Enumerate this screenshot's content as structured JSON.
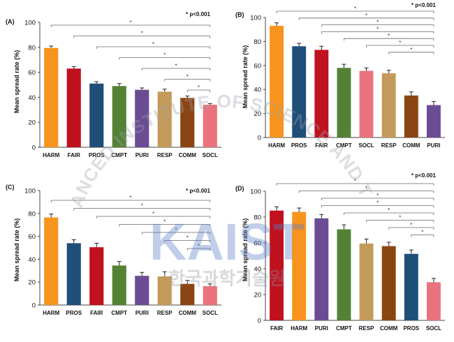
{
  "figure": {
    "watermark": {
      "text_top": "KOREA ADVANCED INSTITUTE OF SCIENCE AND TECHNOLOGY",
      "logo": "KAIST",
      "text_korean": "한국과학기술원"
    }
  },
  "colors": {
    "HARM": "#F7941D",
    "FAIR": "#C0111F",
    "PROS": "#1F4E79",
    "CMPT": "#548235",
    "PURI": "#6A4C93",
    "RESP": "#C49A5B",
    "COMM": "#8B4513",
    "SOCL": "#E8737D",
    "error_bar": "#222222",
    "axis": "#444444",
    "bracket": "#666666"
  },
  "chart_data": [
    {
      "type": "bar",
      "panel": "(A)",
      "significance": "* p<0.001",
      "ylabel": "Mean spread rate (%)",
      "ylim": [
        0,
        100
      ],
      "yticks": [
        0,
        20,
        40,
        60,
        80,
        100
      ],
      "categories": [
        "HARM",
        "FAIR",
        "PROS",
        "CMPT",
        "PURI",
        "RESP",
        "COMM",
        "SOCL"
      ],
      "values": [
        79.5,
        63,
        51,
        49,
        46,
        44.5,
        39.5,
        34
      ],
      "errors": [
        1.5,
        1.5,
        1.5,
        2,
        1.5,
        2,
        1.5,
        1
      ],
      "brackets": [
        {
          "from": "HARM",
          "to": "SOCL",
          "label": "*"
        },
        {
          "from": "FAIR",
          "to": "SOCL",
          "label": "*"
        },
        {
          "from": "PROS",
          "to": "SOCL",
          "label": "*"
        },
        {
          "from": "CMPT",
          "to": "SOCL",
          "label": "*"
        },
        {
          "from": "PURI",
          "to": "SOCL",
          "label": "*"
        },
        {
          "from": "RESP",
          "to": "SOCL",
          "label": "*"
        },
        {
          "from": "COMM",
          "to": "SOCL",
          "label": "*"
        }
      ]
    },
    {
      "type": "bar",
      "panel": "(B)",
      "significance": "* p<0.001",
      "ylabel": "Mean spread rate (%)",
      "ylim": [
        0,
        100
      ],
      "yticks": [
        0,
        20,
        40,
        60,
        80,
        100
      ],
      "categories": [
        "HARM",
        "PROS",
        "FAIR",
        "CMPT",
        "SOCL",
        "RESP",
        "COMM",
        "PURI"
      ],
      "values": [
        93,
        76,
        73,
        58,
        55.5,
        53.5,
        35,
        27
      ],
      "errors": [
        2.5,
        2.5,
        3,
        3,
        2.5,
        2.5,
        3,
        3
      ],
      "brackets": [
        {
          "from": "HARM",
          "to": "PURI",
          "label": "*"
        },
        {
          "from": "PROS",
          "to": "PURI",
          "label": "*"
        },
        {
          "from": "FAIR",
          "to": "PURI",
          "label": "*"
        },
        {
          "from": "FAIR",
          "to": "PURI",
          "label": "*"
        },
        {
          "from": "CMPT",
          "to": "PURI",
          "label": "*"
        },
        {
          "from": "SOCL",
          "to": "PURI",
          "label": "*"
        },
        {
          "from": "RESP",
          "to": "PURI",
          "label": "*"
        }
      ]
    },
    {
      "type": "bar",
      "panel": "(C)",
      "significance": "* p<0.001",
      "ylabel": "Mean spread rate (%)",
      "ylim": [
        0,
        100
      ],
      "yticks": [
        0,
        20,
        40,
        60,
        80,
        100
      ],
      "categories": [
        "HARM",
        "PROS",
        "FAIR",
        "CMPT",
        "PURI",
        "RESP",
        "COMM",
        "SOCL"
      ],
      "values": [
        76.5,
        54,
        50.5,
        34.5,
        25.5,
        25,
        18.5,
        16.5
      ],
      "errors": [
        3,
        3,
        3.5,
        3.5,
        3,
        4,
        3,
        2
      ],
      "brackets": [
        {
          "from": "HARM",
          "to": "SOCL",
          "label": "*"
        },
        {
          "from": "PROS",
          "to": "SOCL",
          "label": "*"
        },
        {
          "from": "FAIR",
          "to": "SOCL",
          "label": "*"
        },
        {
          "from": "CMPT",
          "to": "SOCL",
          "label": "*"
        },
        {
          "from": "PURI",
          "to": "SOCL",
          "label": "*"
        },
        {
          "from": "RESP",
          "to": "SOCL",
          "label": "*"
        },
        {
          "from": "COMM",
          "to": "SOCL",
          "label": "*"
        }
      ]
    },
    {
      "type": "bar",
      "panel": "(D)",
      "significance": "* p<0.001",
      "ylabel": "Mean spread rate (%)",
      "ylim": [
        0,
        100
      ],
      "yticks": [
        0,
        20,
        40,
        60,
        80,
        100
      ],
      "categories": [
        "FAIR",
        "HARM",
        "PURI",
        "CMPT",
        "RESP",
        "COMM",
        "PROS",
        "SOCL"
      ],
      "values": [
        85,
        84,
        79,
        70.5,
        59.5,
        57.5,
        51.5,
        29.5
      ],
      "errors": [
        3,
        3,
        3,
        3.5,
        3.5,
        3,
        3,
        3
      ],
      "brackets": [
        {
          "from": "FAIR",
          "to": "SOCL",
          "label": "*"
        },
        {
          "from": "HARM",
          "to": "SOCL",
          "label": "*"
        },
        {
          "from": "PURI",
          "to": "SOCL",
          "label": "*"
        },
        {
          "from": "PURI",
          "to": "SOCL",
          "label": "*"
        },
        {
          "from": "CMPT",
          "to": "SOCL",
          "label": "*"
        },
        {
          "from": "RESP",
          "to": "SOCL",
          "label": "*"
        },
        {
          "from": "COMM",
          "to": "SOCL",
          "label": "*"
        },
        {
          "from": "PROS",
          "to": "SOCL",
          "label": "*"
        }
      ]
    }
  ]
}
